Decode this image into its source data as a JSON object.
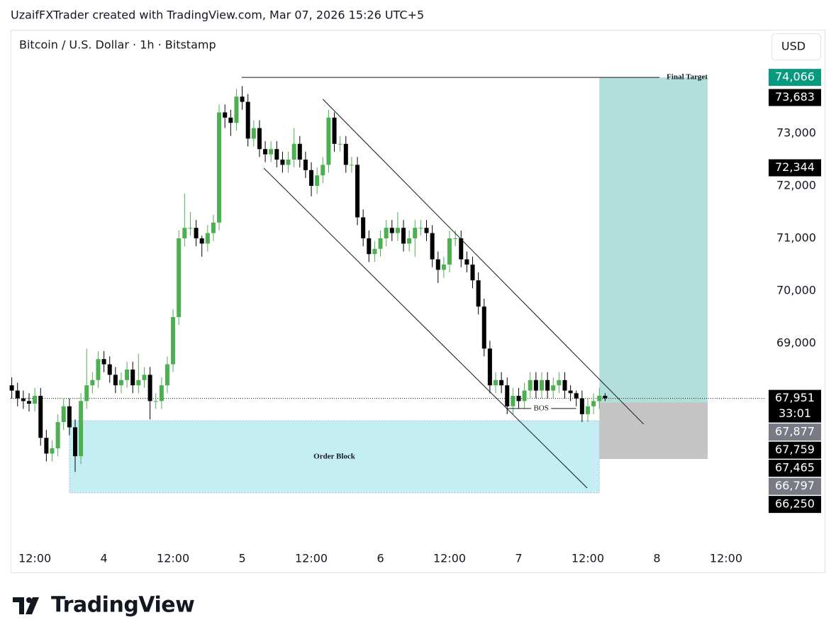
{
  "attribution": "UzaifFXTrader created with TradingView.com, Mar 07, 2026 15:26 UTC+5",
  "logo_text": "TradingView",
  "chart_data": {
    "type": "candlestick",
    "title": "Bitcoin / U.S. Dollar · 1h · Bitstamp",
    "currency": "USD",
    "up_color": "#4caf50",
    "down_color": "#000000",
    "xlim": [
      -4.2,
      126.9
    ],
    "ylim": [
      65135,
      74973
    ],
    "xticks": [
      {
        "value": 0,
        "label": "12:00"
      },
      {
        "value": 12,
        "label": "4"
      },
      {
        "value": 24,
        "label": "12:00"
      },
      {
        "value": 36,
        "label": "5"
      },
      {
        "value": 48,
        "label": "12:00"
      },
      {
        "value": 60,
        "label": "6"
      },
      {
        "value": 72,
        "label": "12:00"
      },
      {
        "value": 84,
        "label": "7"
      },
      {
        "value": 96,
        "label": "12:00"
      },
      {
        "value": 108,
        "label": "8"
      },
      {
        "value": 120,
        "label": "12:00"
      }
    ],
    "yticks": [
      {
        "value": 73000,
        "label": "73,000"
      },
      {
        "value": 72000,
        "label": "72,000"
      },
      {
        "value": 71000,
        "label": "71,000"
      },
      {
        "value": 70000,
        "label": "70,000"
      },
      {
        "value": 69000,
        "label": "69,000"
      }
    ],
    "x": [
      -4,
      -3,
      -2,
      -1,
      0,
      1,
      2,
      3,
      4,
      5,
      6,
      7,
      8,
      9,
      10,
      11,
      12,
      13,
      14,
      15,
      16,
      17,
      18,
      19,
      20,
      21,
      22,
      23,
      24,
      25,
      26,
      27,
      28,
      29,
      30,
      31,
      32,
      33,
      34,
      35,
      36,
      37,
      38,
      39,
      40,
      41,
      42,
      43,
      44,
      45,
      46,
      47,
      48,
      49,
      50,
      51,
      52,
      53,
      54,
      55,
      56,
      57,
      58,
      59,
      60,
      61,
      62,
      63,
      64,
      65,
      66,
      67,
      68,
      69,
      70,
      71,
      72,
      73,
      74,
      75,
      76,
      77,
      78,
      79,
      80,
      81,
      82,
      83,
      84,
      85,
      86,
      87,
      88,
      89,
      90,
      91,
      92,
      93,
      94,
      95,
      96,
      97,
      98,
      99
    ],
    "open": [
      68200,
      68100,
      67950,
      67900,
      67850,
      68000,
      67200,
      66900,
      67000,
      67500,
      67800,
      67400,
      66850,
      67900,
      68200,
      68300,
      68700,
      68600,
      68400,
      68200,
      68300,
      68500,
      68200,
      68300,
      68400,
      67900,
      67900,
      68200,
      68600,
      69500,
      71000,
      71200,
      71200,
      71000,
      70900,
      71100,
      71300,
      73400,
      73300,
      73200,
      73700,
      73600,
      72900,
      73100,
      72700,
      72600,
      72700,
      72500,
      72400,
      72500,
      72800,
      72500,
      72300,
      72000,
      72200,
      72400,
      73300,
      72800,
      72800,
      72400,
      72400,
      71400,
      71000,
      70700,
      70800,
      71000,
      71200,
      71100,
      71200,
      70900,
      71000,
      71200,
      71200,
      71100,
      70600,
      70400,
      70500,
      71000,
      71000,
      70600,
      70500,
      70200,
      69700,
      68900,
      68200,
      68300,
      68200,
      67800,
      68000,
      67900,
      68100,
      68300,
      68100,
      68300,
      68100,
      68200,
      68300,
      68100,
      68050,
      67950,
      67650,
      67800,
      67900,
      68000
    ],
    "high": [
      68350,
      68250,
      68100,
      68050,
      68150,
      68150,
      67350,
      67150,
      67650,
      67950,
      67950,
      67550,
      68050,
      68900,
      68450,
      68850,
      68850,
      68750,
      68550,
      68450,
      68650,
      68650,
      68800,
      68550,
      68550,
      68050,
      68350,
      68750,
      69650,
      71150,
      71850,
      71500,
      71350,
      71050,
      71250,
      71450,
      73550,
      73550,
      73450,
      73850,
      73900,
      73750,
      73250,
      73250,
      72850,
      72850,
      72850,
      72650,
      72650,
      73100,
      72950,
      72650,
      72450,
      72350,
      72550,
      73450,
      73400,
      72950,
      72950,
      72550,
      72550,
      71550,
      71150,
      70950,
      71150,
      71350,
      71350,
      71500,
      71350,
      71150,
      71350,
      71350,
      71350,
      71250,
      70750,
      70650,
      71150,
      71150,
      71150,
      70750,
      70650,
      70350,
      69850,
      69050,
      68450,
      68450,
      68350,
      68150,
      68150,
      68250,
      68450,
      68450,
      68450,
      68450,
      68350,
      68450,
      68450,
      68200,
      68100,
      68100,
      67950,
      68050,
      68150,
      68050
    ],
    "low": [
      67950,
      67800,
      67750,
      67700,
      67700,
      67050,
      66750,
      66750,
      66850,
      67350,
      67250,
      66550,
      66700,
      67750,
      68050,
      68150,
      68450,
      68250,
      68050,
      68050,
      68150,
      68050,
      68050,
      68150,
      67550,
      67750,
      67750,
      68050,
      68450,
      69350,
      70850,
      71050,
      70850,
      70650,
      70750,
      70950,
      71150,
      73100,
      72950,
      73050,
      73450,
      72750,
      72750,
      72550,
      72450,
      72450,
      72350,
      72250,
      72250,
      72350,
      72350,
      72150,
      71800,
      71850,
      72050,
      72250,
      72650,
      72650,
      72250,
      72250,
      71250,
      70850,
      70550,
      70550,
      70650,
      70850,
      70950,
      70950,
      70750,
      70750,
      70650,
      71050,
      70950,
      70450,
      70150,
      70250,
      70350,
      70850,
      70450,
      70350,
      70050,
      69550,
      68750,
      68050,
      68050,
      68050,
      67650,
      67650,
      67750,
      67750,
      67950,
      67950,
      67950,
      67950,
      67950,
      68050,
      67950,
      67900,
      67800,
      67500,
      67500,
      67650,
      67750,
      67900
    ],
    "close": [
      68100,
      67950,
      67900,
      67850,
      68000,
      67200,
      66900,
      67000,
      67500,
      67800,
      67400,
      66850,
      67900,
      68200,
      68300,
      68700,
      68600,
      68400,
      68200,
      68300,
      68500,
      68200,
      68300,
      68400,
      67900,
      67900,
      68200,
      68600,
      69500,
      71000,
      71200,
      71200,
      71000,
      70900,
      71100,
      71300,
      73400,
      73300,
      73200,
      73700,
      73600,
      72900,
      73100,
      72700,
      72600,
      72700,
      72500,
      72400,
      72500,
      72800,
      72500,
      72300,
      72000,
      72200,
      72400,
      73300,
      72800,
      72800,
      72400,
      72400,
      71400,
      71000,
      70700,
      70800,
      71000,
      71200,
      71100,
      71200,
      70900,
      71000,
      71200,
      71200,
      71100,
      70600,
      70400,
      70500,
      71000,
      71000,
      70600,
      70500,
      70200,
      69700,
      68900,
      68200,
      68300,
      68200,
      67800,
      68000,
      67900,
      68100,
      68300,
      68100,
      68300,
      68100,
      68200,
      68300,
      68100,
      68050,
      67950,
      67650,
      67800,
      67900,
      68000,
      67951
    ],
    "order_block": {
      "label": "Order Block",
      "x": [
        6,
        98
      ],
      "top": 67527,
      "bottom": 66150,
      "color": "#c5eef4"
    },
    "position": {
      "x": [
        98,
        116.8
      ],
      "entry": 67877,
      "target": 74066,
      "stop": 66797,
      "target_color": "#b2dfdb",
      "stop_color": "#c4c4c4"
    },
    "trendlines": [
      {
        "x": [
          50,
          105.7
        ],
        "y": [
          73650,
          67460
        ]
      },
      {
        "x": [
          39.75,
          95.9
        ],
        "y": [
          72338,
          66243
        ]
      }
    ],
    "target_line": {
      "label": "Final Target",
      "x": [
        35.9,
        116.8
      ],
      "y": 74066
    },
    "bos": {
      "label": "BOS",
      "x": [
        81.8,
        94
      ],
      "y": 67759
    },
    "last_price": 67951,
    "price_labels": [
      {
        "value": 74066,
        "label": "74,066",
        "color": "#089981"
      },
      {
        "value": 73683,
        "label": "73,683",
        "color": "#000000"
      },
      {
        "value": 72344,
        "label": "72,344",
        "color": "#000000"
      },
      {
        "value": 67951,
        "label": "67,951",
        "countdown": "33:01",
        "color": "#000000"
      },
      {
        "value": 67877,
        "label": "67,877",
        "color": "#787b86"
      },
      {
        "value": 67759,
        "label": "67,759",
        "color": "#000000"
      },
      {
        "value": 67465,
        "label": "67,465",
        "color": "#000000"
      },
      {
        "value": 66797,
        "label": "66,797",
        "color": "#787b86"
      },
      {
        "value": 66250,
        "label": "66,250",
        "color": "#000000"
      }
    ]
  }
}
